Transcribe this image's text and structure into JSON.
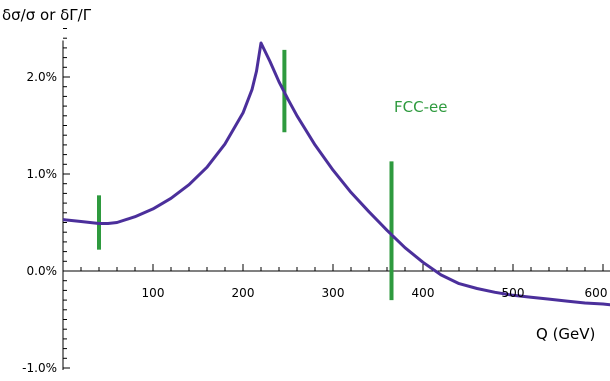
{
  "chart_data": {
    "type": "line",
    "title": "",
    "ylabel": "δσ/σ   or   δΓ/Γ",
    "xlabel": "Q (GeV)",
    "xlim": [
      0,
      610
    ],
    "ylim": [
      -1.0,
      2.5
    ],
    "x_ticks": [
      100,
      200,
      300,
      400,
      500,
      600
    ],
    "x_tick_labels": [
      "100",
      "200",
      "300",
      "400",
      "500",
      "600"
    ],
    "y_ticks": [
      -1.0,
      0.0,
      1.0,
      2.0
    ],
    "y_tick_labels": [
      "-1.0%",
      "0.0%",
      "1.0%",
      "2.0%"
    ],
    "grid": false,
    "series": [
      {
        "color": "#4b2f9b",
        "x": [
          0,
          20,
          40,
          50,
          60,
          80,
          100,
          120,
          140,
          160,
          180,
          200,
          210,
          215,
          220,
          230,
          240,
          250,
          260,
          280,
          300,
          320,
          340,
          360,
          380,
          400,
          420,
          440,
          460,
          480,
          500,
          520,
          540,
          560,
          580,
          600,
          610
        ],
        "y": [
          0.53,
          0.51,
          0.49,
          0.49,
          0.5,
          0.56,
          0.64,
          0.75,
          0.89,
          1.07,
          1.31,
          1.63,
          1.87,
          2.06,
          2.35,
          2.16,
          1.95,
          1.77,
          1.6,
          1.3,
          1.04,
          0.81,
          0.61,
          0.42,
          0.24,
          0.09,
          -0.04,
          -0.13,
          -0.18,
          -0.22,
          -0.25,
          -0.27,
          -0.29,
          -0.31,
          -0.33,
          -0.34,
          -0.35
        ]
      }
    ],
    "error_bars": {
      "color": "#2e9a3e",
      "label": "FCC-ee",
      "items": [
        {
          "x": 40,
          "low": 0.22,
          "high": 0.78
        },
        {
          "x": 246,
          "low": 1.43,
          "high": 2.28
        },
        {
          "x": 365,
          "low": -0.3,
          "high": 1.13
        }
      ]
    },
    "annotations": [
      {
        "text": "FCC-ee",
        "x": 415,
        "y": 1.65,
        "color": "#2e9a3e"
      }
    ]
  }
}
